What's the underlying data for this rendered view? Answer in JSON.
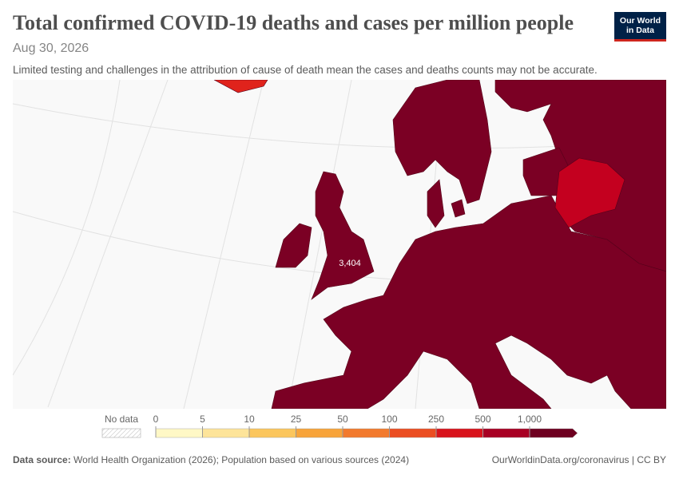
{
  "header": {
    "title": "Total confirmed COVID-19 deaths and cases per million people",
    "subtitle": "Aug 30, 2026",
    "note": "Limited testing and challenges in the attribution of cause of death mean the cases and deaths counts may not be accurate.",
    "logo": [
      "Our World",
      "in Data"
    ]
  },
  "map": {
    "labels": [
      "3,404"
    ]
  },
  "legend": {
    "no_data": "No data",
    "ticks": [
      0,
      5,
      10,
      25,
      50,
      100,
      250,
      500,
      {
        "value": 1000,
        "label": "1,000"
      }
    ],
    "colors": [
      "#fff8c6",
      "#fde49a",
      "#fbc65d",
      "#f7a43a",
      "#f27a2d",
      "#eb4e22",
      "#d8131c",
      "#a80023",
      "#6e0020"
    ]
  },
  "footer": {
    "source_label": "Data source:",
    "source": "World Health Organization (2026); Population based on various sources (2024)",
    "link": "OurWorldinData.org/coronavirus | CC BY"
  }
}
